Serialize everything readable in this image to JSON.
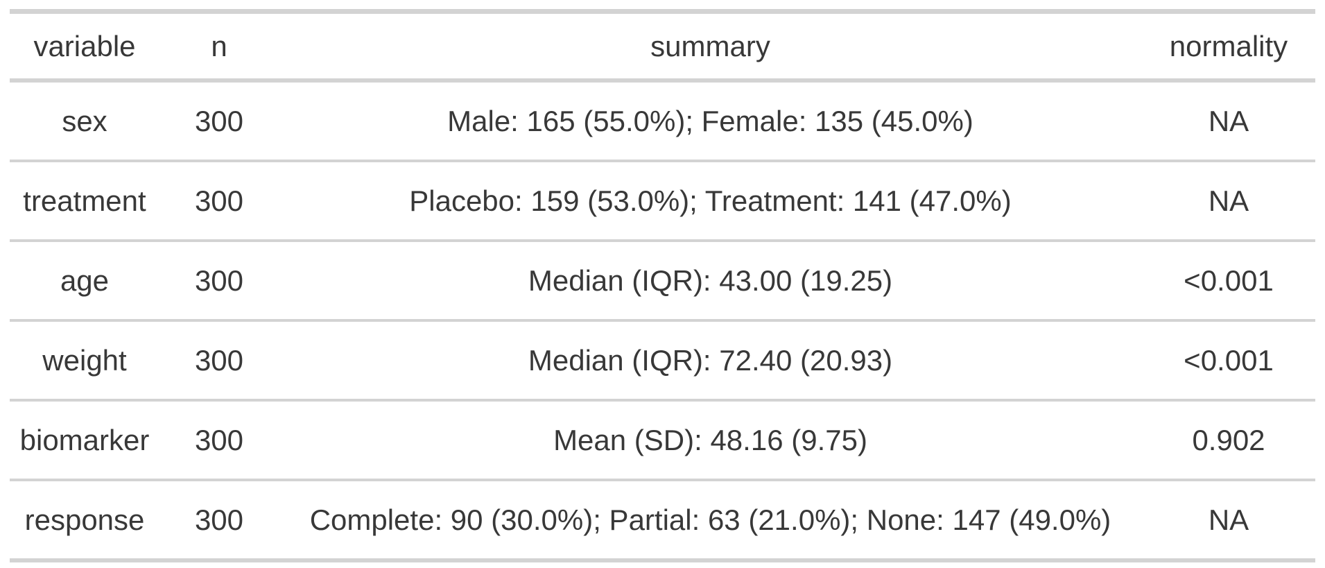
{
  "colors": {
    "border": "#d3d3d3",
    "text": "#383838",
    "background": "#ffffff"
  },
  "table": {
    "columns": [
      {
        "id": "variable",
        "label": "variable"
      },
      {
        "id": "n",
        "label": "n"
      },
      {
        "id": "summary",
        "label": "summary"
      },
      {
        "id": "normality",
        "label": "normality"
      }
    ],
    "rows": [
      {
        "variable": "sex",
        "n": "300",
        "summary": "Male: 165 (55.0%); Female: 135 (45.0%)",
        "normality": "NA"
      },
      {
        "variable": "treatment",
        "n": "300",
        "summary": "Placebo: 159 (53.0%); Treatment: 141 (47.0%)",
        "normality": "NA"
      },
      {
        "variable": "age",
        "n": "300",
        "summary": "Median (IQR): 43.00 (19.25)",
        "normality": "<0.001"
      },
      {
        "variable": "weight",
        "n": "300",
        "summary": "Median (IQR): 72.40 (20.93)",
        "normality": "<0.001"
      },
      {
        "variable": "biomarker",
        "n": "300",
        "summary": "Mean (SD): 48.16 (9.75)",
        "normality": "0.902"
      },
      {
        "variable": "response",
        "n": "300",
        "summary": "Complete: 90 (30.0%); Partial: 63 (21.0%); None: 147 (49.0%)",
        "normality": "NA"
      }
    ]
  },
  "chart_data": {
    "type": "table",
    "title": "",
    "columns": [
      "variable",
      "n",
      "summary",
      "normality"
    ],
    "rows": [
      [
        "sex",
        300,
        "Male: 165 (55.0%); Female: 135 (45.0%)",
        "NA"
      ],
      [
        "treatment",
        300,
        "Placebo: 159 (53.0%); Treatment: 141 (47.0%)",
        "NA"
      ],
      [
        "age",
        300,
        "Median (IQR): 43.00 (19.25)",
        "<0.001"
      ],
      [
        "weight",
        300,
        "Median (IQR): 72.40 (20.93)",
        "<0.001"
      ],
      [
        "biomarker",
        300,
        "Mean (SD): 48.16 (9.75)",
        "0.902"
      ],
      [
        "response",
        300,
        "Complete: 90 (30.0%); Partial: 63 (21.0%); None: 147 (49.0%)",
        "NA"
      ]
    ]
  }
}
